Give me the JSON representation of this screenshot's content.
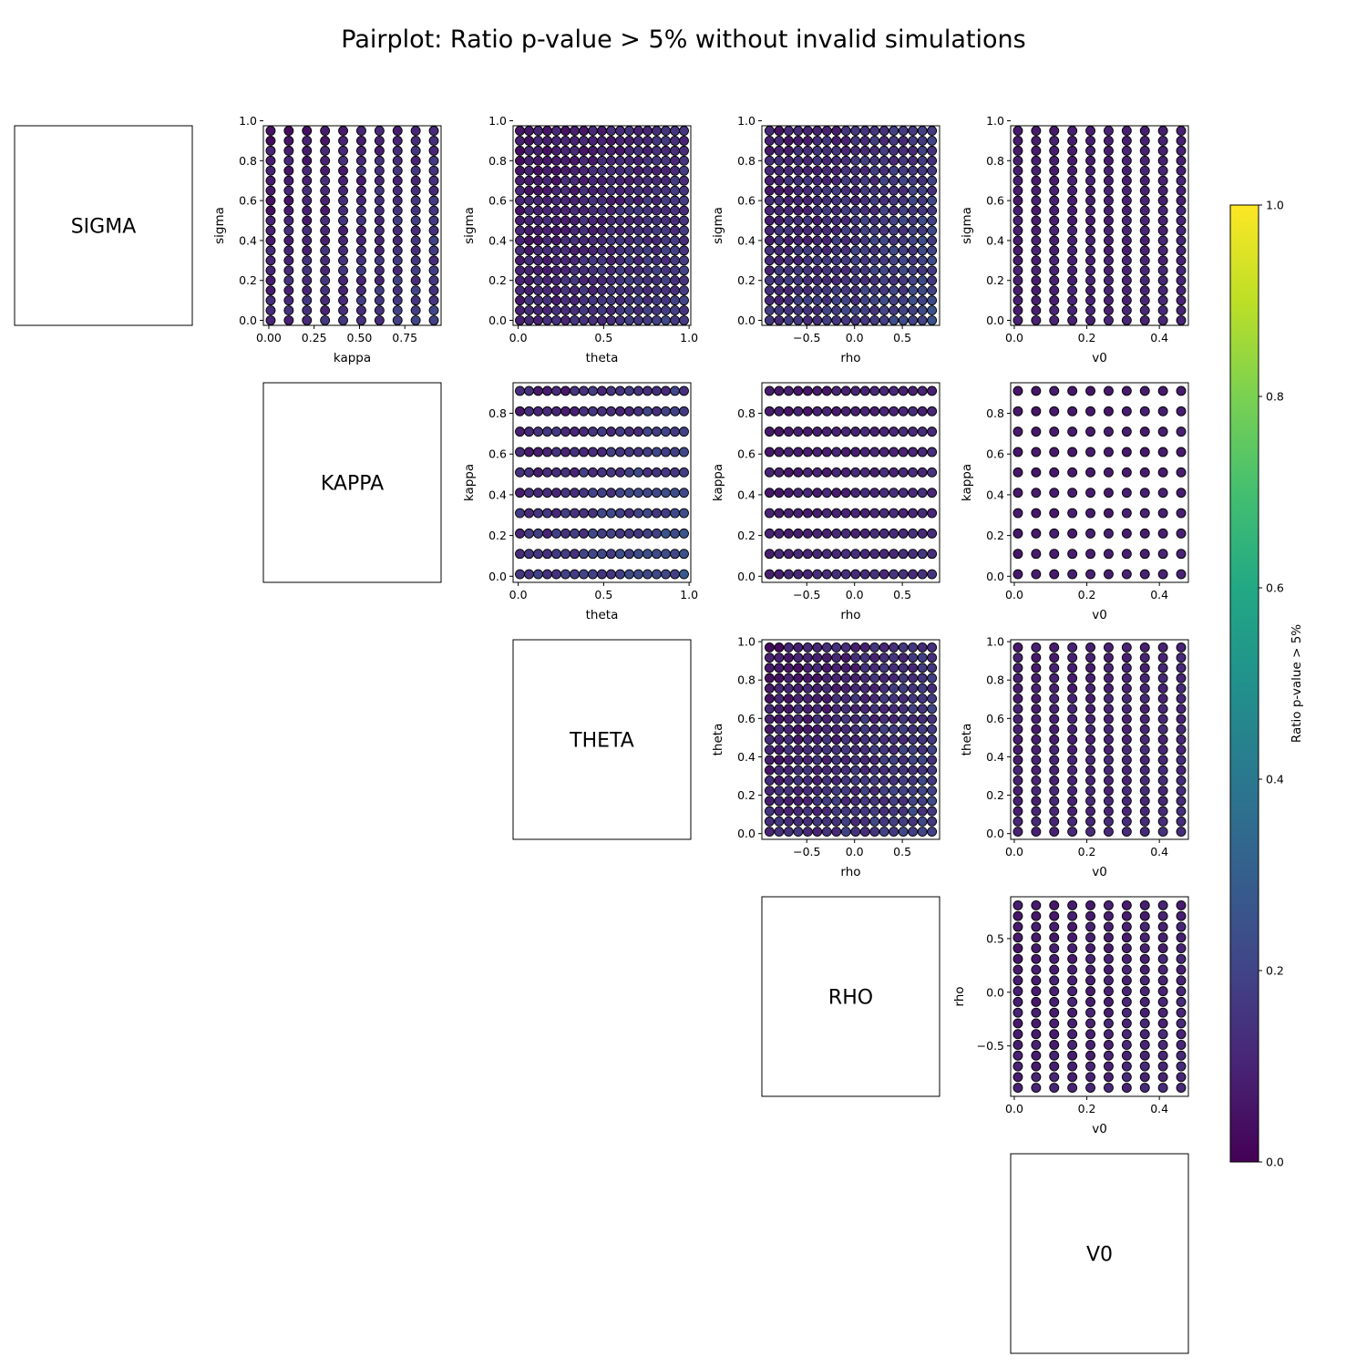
{
  "chart_data": {
    "type": "scatter",
    "title": "Pairplot: Ratio p-value > 5% without invalid simulations",
    "variables": [
      {
        "key": "sigma",
        "diag_label": "SIGMA",
        "axis_label": "sigma",
        "values_count": 20,
        "min": 0.0,
        "max": 0.95,
        "lim": [
          -0.025,
          0.975
        ],
        "ticks": [
          0.0,
          0.2,
          0.4,
          0.6,
          0.8,
          1.0
        ],
        "tick_labels": [
          "0.0",
          "0.2",
          "0.4",
          "0.6",
          "0.8",
          "1.0"
        ]
      },
      {
        "key": "kappa",
        "diag_label": "KAPPA",
        "axis_label": "kappa",
        "values_count": 10,
        "min": 0.01,
        "max": 0.91,
        "lim": [
          -0.03,
          0.95
        ],
        "ticks": [
          0.0,
          0.25,
          0.5,
          0.75
        ],
        "tick_labels": [
          "0.00",
          "0.25",
          "0.50",
          "0.75"
        ],
        "ticks_y": [
          0.0,
          0.2,
          0.4,
          0.6,
          0.8
        ],
        "tick_labels_y": [
          "0.0",
          "0.2",
          "0.4",
          "0.6",
          "0.8"
        ]
      },
      {
        "key": "theta",
        "diag_label": "THETA",
        "axis_label": "theta",
        "values_count": 19,
        "min": 0.01,
        "max": 0.97,
        "lim": [
          -0.03,
          1.01
        ],
        "ticks": [
          0.0,
          0.5,
          1.0
        ],
        "tick_labels": [
          "0.0",
          "0.5",
          "1.0"
        ],
        "ticks_y": [
          0.0,
          0.2,
          0.4,
          0.6,
          0.8,
          1.0
        ],
        "tick_labels_y": [
          "0.0",
          "0.2",
          "0.4",
          "0.6",
          "0.8",
          "1.0"
        ]
      },
      {
        "key": "rho",
        "diag_label": "RHO",
        "axis_label": "rho",
        "values_count": 18,
        "min": -0.89,
        "max": 0.81,
        "lim": [
          -0.97,
          0.89
        ],
        "ticks": [
          -0.5,
          0.0,
          0.5
        ],
        "tick_labels": [
          "−0.5",
          "0.0",
          "0.5"
        ]
      },
      {
        "key": "v0",
        "diag_label": "V0",
        "axis_label": "v0",
        "values_count": 10,
        "min": 0.01,
        "max": 0.46,
        "lim": [
          -0.01,
          0.48
        ],
        "ticks": [
          0.0,
          0.2,
          0.4
        ],
        "tick_labels": [
          "0.0",
          "0.2",
          "0.4"
        ]
      }
    ],
    "color_scale": {
      "colormap": "viridis",
      "label": "Ratio p-value > 5%",
      "range": [
        0.0,
        1.0
      ],
      "ticks": [
        0.0,
        0.2,
        0.4,
        0.6,
        0.8,
        1.0
      ],
      "tick_labels": [
        "0.0",
        "0.2",
        "0.4",
        "0.6",
        "0.8",
        "1.0"
      ]
    },
    "panels": [
      {
        "x": "kappa",
        "y": "sigma",
        "ratio_range": [
          0.02,
          0.22
        ]
      },
      {
        "x": "theta",
        "y": "sigma",
        "ratio_range": [
          0.02,
          0.22
        ]
      },
      {
        "x": "rho",
        "y": "sigma",
        "ratio_range": [
          0.04,
          0.26
        ]
      },
      {
        "x": "v0",
        "y": "sigma",
        "ratio_range": [
          0.06,
          0.12
        ]
      },
      {
        "x": "theta",
        "y": "kappa",
        "ratio_range": [
          0.04,
          0.28
        ]
      },
      {
        "x": "rho",
        "y": "kappa",
        "ratio_range": [
          0.04,
          0.16
        ]
      },
      {
        "x": "v0",
        "y": "kappa",
        "ratio_range": [
          0.05,
          0.1
        ]
      },
      {
        "x": "rho",
        "y": "theta",
        "ratio_range": [
          0.02,
          0.24
        ]
      },
      {
        "x": "v0",
        "y": "theta",
        "ratio_range": [
          0.06,
          0.14
        ]
      },
      {
        "x": "v0",
        "y": "rho",
        "ratio_range": [
          0.05,
          0.13
        ]
      }
    ],
    "grid": false,
    "legend": "colorbar right"
  }
}
